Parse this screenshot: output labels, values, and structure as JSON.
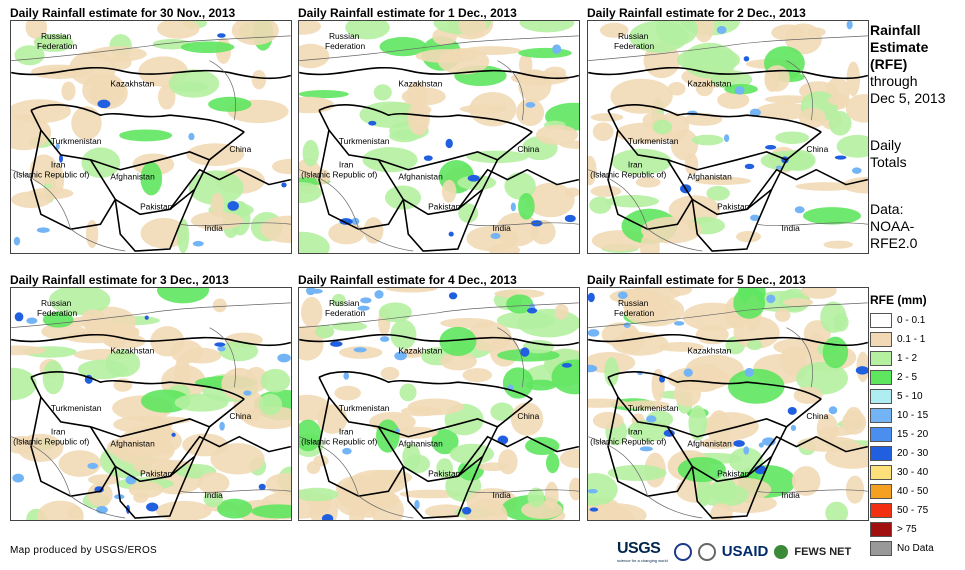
{
  "panels": [
    {
      "title": "Daily Rainfall estimate for 30 Nov., 2013"
    },
    {
      "title": "Daily Rainfall estimate for 1 Dec., 2013"
    },
    {
      "title": "Daily Rainfall estimate for 2 Dec., 2013"
    },
    {
      "title": "Daily Rainfall estimate for 3 Dec., 2013"
    },
    {
      "title": "Daily Rainfall estimate for 4 Dec., 2013"
    },
    {
      "title": "Daily Rainfall estimate for 5 Dec., 2013"
    }
  ],
  "map_labels": {
    "russia_1": "Russian",
    "russia_2": "Federation",
    "kazakhstan": "Kazakhstan",
    "turkmenistan": "Turkmenistan",
    "iran_1": "Iran",
    "iran_2": "(Islamic Republic of)",
    "afghanistan": "Afghanistan",
    "pakistan": "Pakistan",
    "china": "China",
    "india": "India"
  },
  "side": {
    "line1": "Rainfall",
    "line2": "Estimate",
    "line3": "(RFE)",
    "line4": "through",
    "line5": "Dec 5, 2013",
    "line6": "Daily",
    "line7": "Totals",
    "line8": "Data:",
    "line9": "NOAA-",
    "line10": "RFE2.0"
  },
  "legend": {
    "title": "RFE (mm)",
    "items": [
      {
        "label": "0 - 0.1",
        "color": "#ffffff"
      },
      {
        "label": "0.1 - 1",
        "color": "#f1d9b5"
      },
      {
        "label": "1 - 2",
        "color": "#b4f0a0"
      },
      {
        "label": "2 - 5",
        "color": "#5fe65f"
      },
      {
        "label": "5 - 10",
        "color": "#aeeef2"
      },
      {
        "label": "10 - 15",
        "color": "#72b4f5"
      },
      {
        "label": "15 - 20",
        "color": "#4a8ef0"
      },
      {
        "label": "20 - 30",
        "color": "#2060e0"
      },
      {
        "label": "30 - 40",
        "color": "#fde07a"
      },
      {
        "label": "40 - 50",
        "color": "#f5a020"
      },
      {
        "label": "50 - 75",
        "color": "#f03010"
      },
      {
        "label": "> 75",
        "color": "#a01010"
      },
      {
        "label": "No Data",
        "color": "#999999"
      }
    ]
  },
  "credit": "Map produced by USGS/EROS",
  "logos": {
    "usgs": "USGS",
    "usgs_tag": "science for a changing world",
    "usaid": "USAID",
    "fews": "FEWS NET"
  }
}
